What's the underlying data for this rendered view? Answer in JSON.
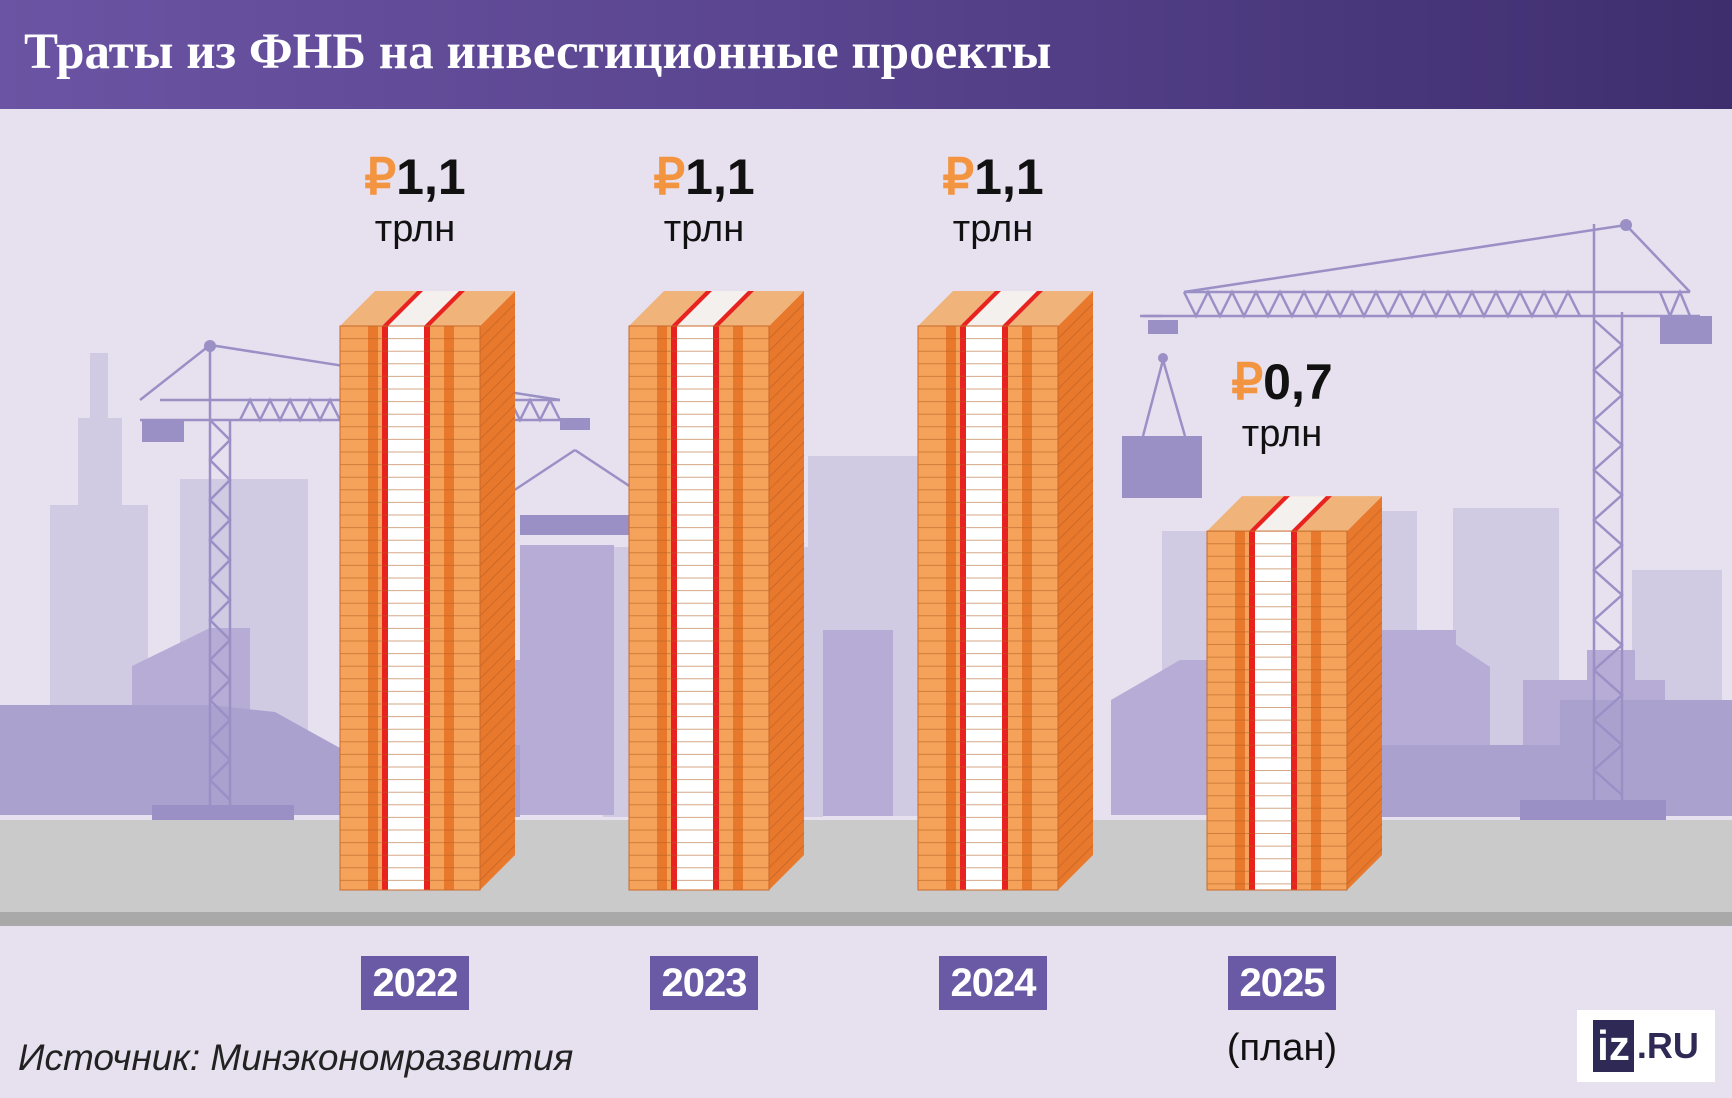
{
  "title": "Траты из ФНБ на инвестиционные проекты",
  "source": "Источник: Минэкономразвития",
  "logo": {
    "mark": "iz",
    "domain": ".RU"
  },
  "colors": {
    "header": "#5a4590",
    "currency": "#f39441",
    "stack_face": "#f5a35a",
    "stack_side": "#e8782c",
    "band_red": "#e8231f",
    "badge": "#6a5aa5"
  },
  "chart_data": {
    "type": "bar",
    "title": "Траты из ФНБ на инвестиционные проекты",
    "categories": [
      "2022",
      "2023",
      "2024",
      "2025"
    ],
    "category_notes": [
      "",
      "",
      "",
      "(план)"
    ],
    "values": [
      1.1,
      1.1,
      1.1,
      0.7
    ],
    "value_labels": [
      "1,1",
      "1,1",
      "1,1",
      "0,7"
    ],
    "currency_symbol": "₽",
    "unit": "трлн",
    "xlabel": "",
    "ylabel": "",
    "ylim": [
      0,
      1.1
    ],
    "grid": false,
    "legend": "none"
  }
}
